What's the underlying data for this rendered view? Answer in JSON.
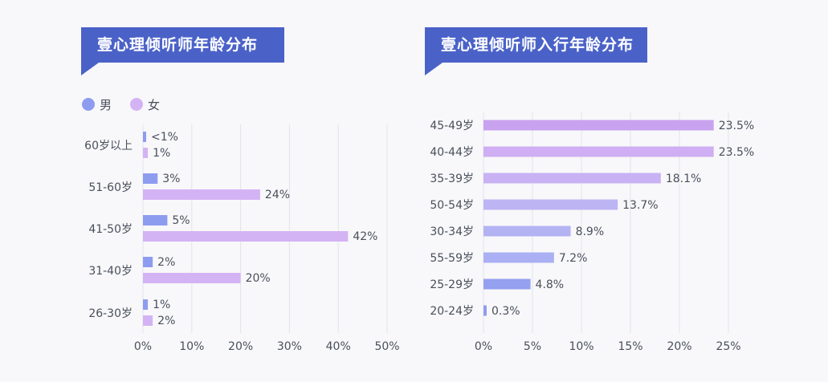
{
  "chart_data": [
    {
      "type": "bar",
      "orientation": "horizontal",
      "title": "壹心理倾听师年龄分布",
      "categories": [
        "60岁以上",
        "51-60岁",
        "41-50岁",
        "31-40岁",
        "26-30岁"
      ],
      "series": [
        {
          "name": "男",
          "color": "#8e9cf0",
          "values": [
            0.5,
            3,
            5,
            2,
            1
          ],
          "labels": [
            "<1%",
            "3%",
            "5%",
            "2%",
            "1%"
          ]
        },
        {
          "name": "女",
          "color": "#d4b3f5",
          "values": [
            1,
            24,
            42,
            20,
            2
          ],
          "labels": [
            "1%",
            "24%",
            "42%",
            "20%",
            "2%"
          ]
        }
      ],
      "xlim": [
        0,
        50
      ],
      "xticks": [
        "0%",
        "10%",
        "20%",
        "30%",
        "40%",
        "50%"
      ],
      "legend": "top-left",
      "grid": true
    },
    {
      "type": "bar",
      "orientation": "horizontal",
      "title": "壹心理倾听师入行年龄分布",
      "categories": [
        "45-49岁",
        "40-44岁",
        "35-39岁",
        "50-54岁",
        "30-34岁",
        "55-59岁",
        "25-29岁",
        "20-24岁"
      ],
      "values": [
        23.5,
        23.5,
        18.1,
        13.7,
        8.9,
        7.2,
        4.8,
        0.3
      ],
      "labels": [
        "23.5%",
        "23.5%",
        "18.1%",
        "13.7%",
        "8.9%",
        "7.2%",
        "4.8%",
        "0.3%"
      ],
      "colors": [
        "#c9a2ef",
        "#cfaef3",
        "#c8b2f3",
        "#bdb4f4",
        "#b3b3f4",
        "#aab0f3",
        "#96a0f0",
        "#8f9cef"
      ],
      "xlim": [
        0,
        25
      ],
      "xticks": [
        "0%",
        "5%",
        "10%",
        "15%",
        "20%",
        "25%"
      ],
      "grid": true
    }
  ]
}
